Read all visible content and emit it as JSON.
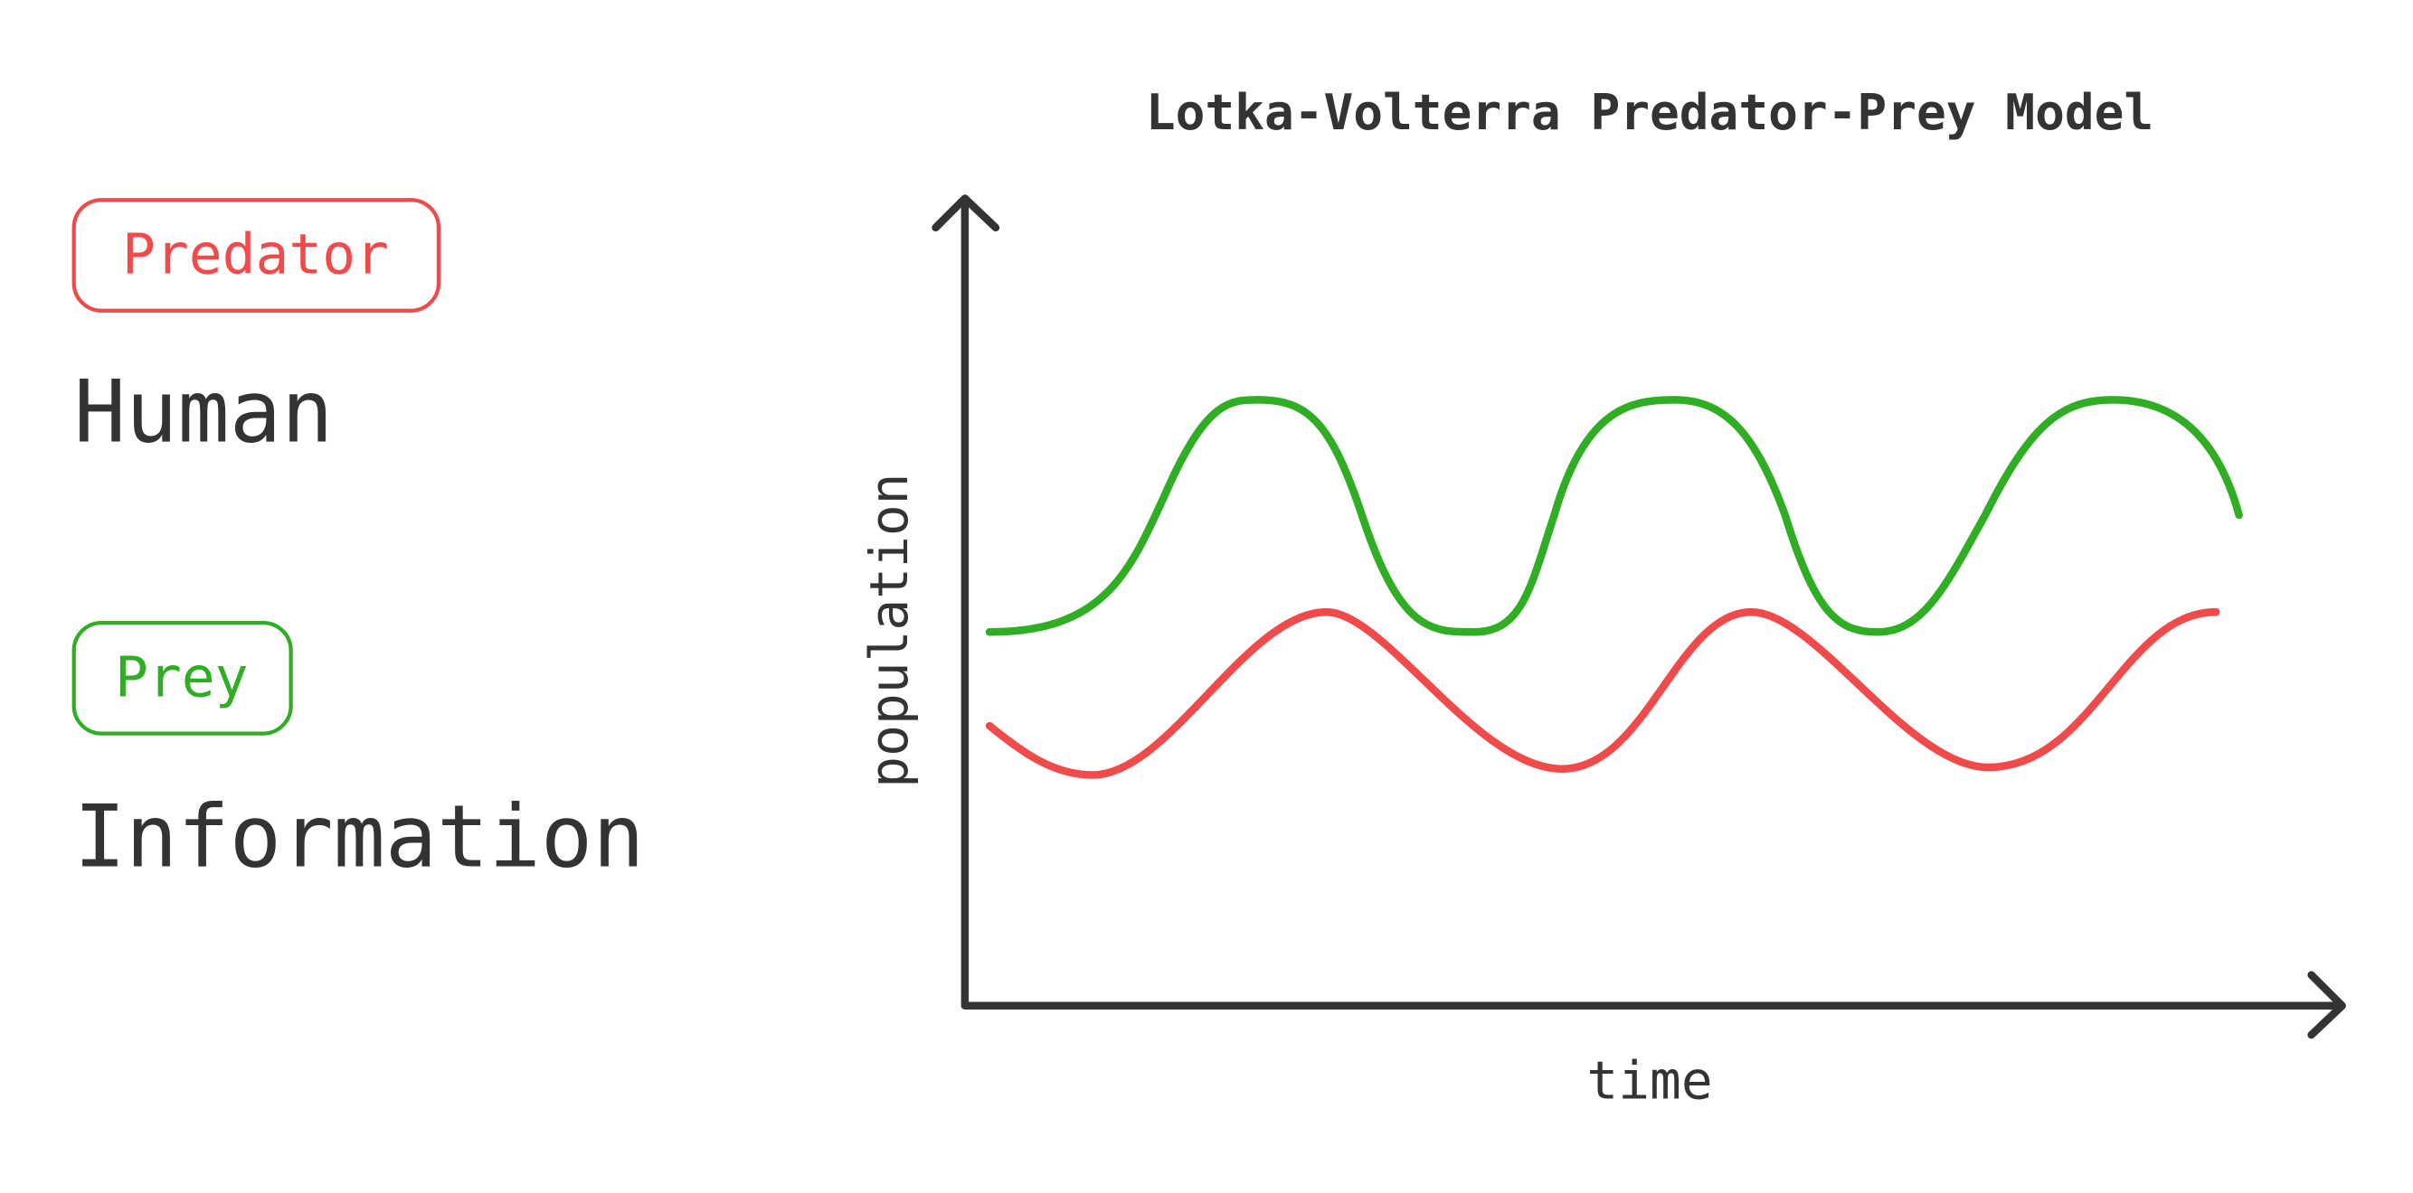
{
  "title": "Lotka-Volterra Predator-Prey Model",
  "legend": [
    {
      "tag": "Predator",
      "label": "Human"
    },
    {
      "tag": "Prey",
      "label": "Information"
    }
  ],
  "axes": {
    "x_label": "time",
    "y_label": "population"
  }
}
